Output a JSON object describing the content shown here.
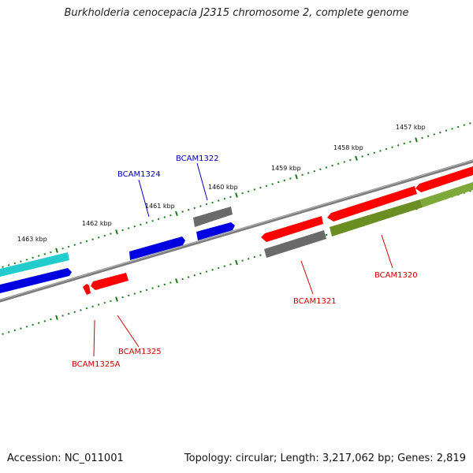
{
  "title": "Burkholderia cenocepacia J2315 chromosome 2, complete genome",
  "footer": {
    "accession": "Accession: NC_011001",
    "summary": "Topology: circular; Length: 3,217,062 bp; Genes: 2,819"
  },
  "colors": {
    "backbone": "#8c8c8c",
    "tick": "#1a7a1a",
    "blue": "#0000e0",
    "red": "#ff0000",
    "cyan": "#22cccc",
    "gray": "#606060",
    "olive": "#6b8e23",
    "label_blue": "#0000bb",
    "label_red": "#cc0000"
  },
  "scale_labels": [
    "1457 kbp",
    "1458 kbp",
    "1459 kbp",
    "1460 kbp",
    "1461 kbp",
    "1462 kbp",
    "1463 kbp"
  ],
  "gene_labels": {
    "bcam1324": "BCAM1324",
    "bcam1322": "BCAM1322",
    "bcam1321": "BCAM1321",
    "bcam1320": "BCAM1320",
    "bcam1325": "BCAM1325",
    "bcam1325a": "BCAM1325A"
  }
}
